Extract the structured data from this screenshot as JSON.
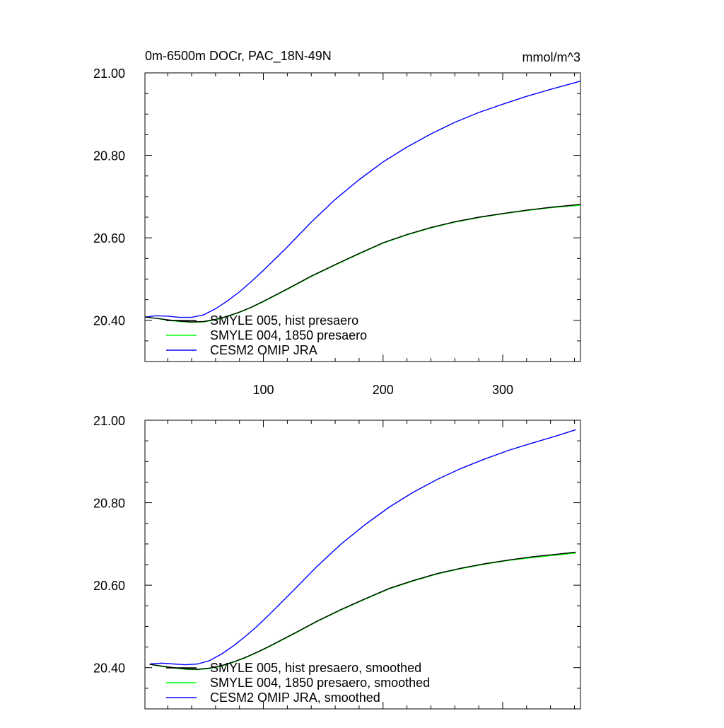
{
  "chart_data": [
    {
      "type": "line",
      "title": "0m-6500m DOCr, PAC_18N-49N",
      "units": "mmol/m^3",
      "xlim": [
        1,
        365
      ],
      "ylim": [
        20.3,
        21.0
      ],
      "x_ticks": [
        100,
        200,
        300
      ],
      "x_tick_labels": [
        "100",
        "200",
        "300"
      ],
      "y_ticks": [
        20.4,
        20.6,
        20.8,
        21.0
      ],
      "y_tick_labels": [
        "20.40",
        "20.60",
        "20.80",
        "21.00"
      ],
      "legend_position": "bottom-left",
      "series": [
        {
          "name": "SMYLE 005, hist presaero",
          "color": "#000000",
          "x": [
            1,
            10,
            20,
            30,
            40,
            50,
            60,
            70,
            80,
            90,
            100,
            120,
            140,
            160,
            180,
            200,
            220,
            240,
            260,
            280,
            300,
            320,
            340,
            365
          ],
          "y": [
            20.408,
            20.405,
            20.401,
            20.398,
            20.396,
            20.397,
            20.402,
            20.41,
            20.42,
            20.432,
            20.446,
            20.476,
            20.507,
            20.535,
            20.562,
            20.588,
            20.608,
            20.625,
            20.639,
            20.65,
            20.659,
            20.667,
            20.674,
            20.681
          ]
        },
        {
          "name": "SMYLE 004, 1850 presaero",
          "color": "#00ff00",
          "x": [
            1,
            10,
            20,
            30,
            40,
            50,
            60,
            70,
            80,
            90,
            100,
            120,
            140,
            160,
            180,
            200,
            220,
            240,
            260,
            280,
            300,
            320,
            340,
            365
          ],
          "y": [
            20.408,
            20.405,
            20.4,
            20.397,
            20.395,
            20.396,
            20.401,
            20.409,
            20.419,
            20.431,
            20.445,
            20.475,
            20.506,
            20.534,
            20.561,
            20.587,
            20.607,
            20.624,
            20.638,
            20.649,
            20.658,
            20.666,
            20.673,
            20.679
          ]
        },
        {
          "name": "CESM2 OMIP JRA",
          "color": "#0000ff",
          "x": [
            1,
            10,
            20,
            30,
            40,
            50,
            60,
            70,
            80,
            90,
            100,
            120,
            140,
            160,
            180,
            200,
            220,
            240,
            260,
            280,
            300,
            320,
            340,
            365
          ],
          "y": [
            20.408,
            20.411,
            20.41,
            20.407,
            20.407,
            20.413,
            20.428,
            20.447,
            20.469,
            20.494,
            20.521,
            20.578,
            20.638,
            20.693,
            20.741,
            20.784,
            20.82,
            20.852,
            20.88,
            20.904,
            20.924,
            20.943,
            20.96,
            20.98
          ]
        }
      ]
    },
    {
      "type": "line",
      "title": "",
      "units": "",
      "xlim": [
        1,
        365
      ],
      "ylim": [
        20.3,
        21.0
      ],
      "x_ticks": [
        100,
        200,
        300
      ],
      "x_tick_labels": [],
      "y_ticks": [
        20.4,
        20.6,
        20.8,
        21.0
      ],
      "y_tick_labels": [
        "20.40",
        "20.60",
        "20.80",
        "21.00"
      ],
      "legend_position": "bottom-left",
      "series": [
        {
          "name": "SMYLE 005, hist presaero, smoothed",
          "color": "#000000",
          "x": [
            5,
            15,
            25,
            35,
            45,
            55,
            65,
            75,
            85,
            95,
            105,
            125,
            145,
            165,
            185,
            205,
            225,
            245,
            265,
            285,
            305,
            325,
            345,
            361
          ],
          "y": [
            20.408,
            20.404,
            20.4,
            20.397,
            20.396,
            20.399,
            20.405,
            20.414,
            20.425,
            20.438,
            20.452,
            20.482,
            20.513,
            20.541,
            20.567,
            20.592,
            20.611,
            20.628,
            20.641,
            20.652,
            20.661,
            20.669,
            20.675,
            20.68
          ]
        },
        {
          "name": "SMYLE 004, 1850 presaero, smoothed",
          "color": "#00ff00",
          "x": [
            5,
            15,
            25,
            35,
            45,
            55,
            65,
            75,
            85,
            95,
            105,
            125,
            145,
            165,
            185,
            205,
            225,
            245,
            265,
            285,
            305,
            325,
            345,
            361
          ],
          "y": [
            20.408,
            20.403,
            20.399,
            20.396,
            20.395,
            20.398,
            20.404,
            20.413,
            20.424,
            20.437,
            20.451,
            20.481,
            20.512,
            20.54,
            20.566,
            20.591,
            20.61,
            20.627,
            20.64,
            20.651,
            20.66,
            20.667,
            20.673,
            20.678
          ]
        },
        {
          "name": "CESM2 OMIP JRA, smoothed",
          "color": "#0000ff",
          "x": [
            5,
            15,
            25,
            35,
            45,
            55,
            65,
            75,
            85,
            95,
            105,
            125,
            145,
            165,
            185,
            205,
            225,
            245,
            265,
            285,
            305,
            325,
            345,
            361
          ],
          "y": [
            20.409,
            20.411,
            20.409,
            20.407,
            20.409,
            20.417,
            20.433,
            20.453,
            20.476,
            20.501,
            20.529,
            20.587,
            20.646,
            20.7,
            20.747,
            20.789,
            20.825,
            20.856,
            20.883,
            20.906,
            20.927,
            20.945,
            20.962,
            20.977
          ]
        }
      ]
    }
  ]
}
